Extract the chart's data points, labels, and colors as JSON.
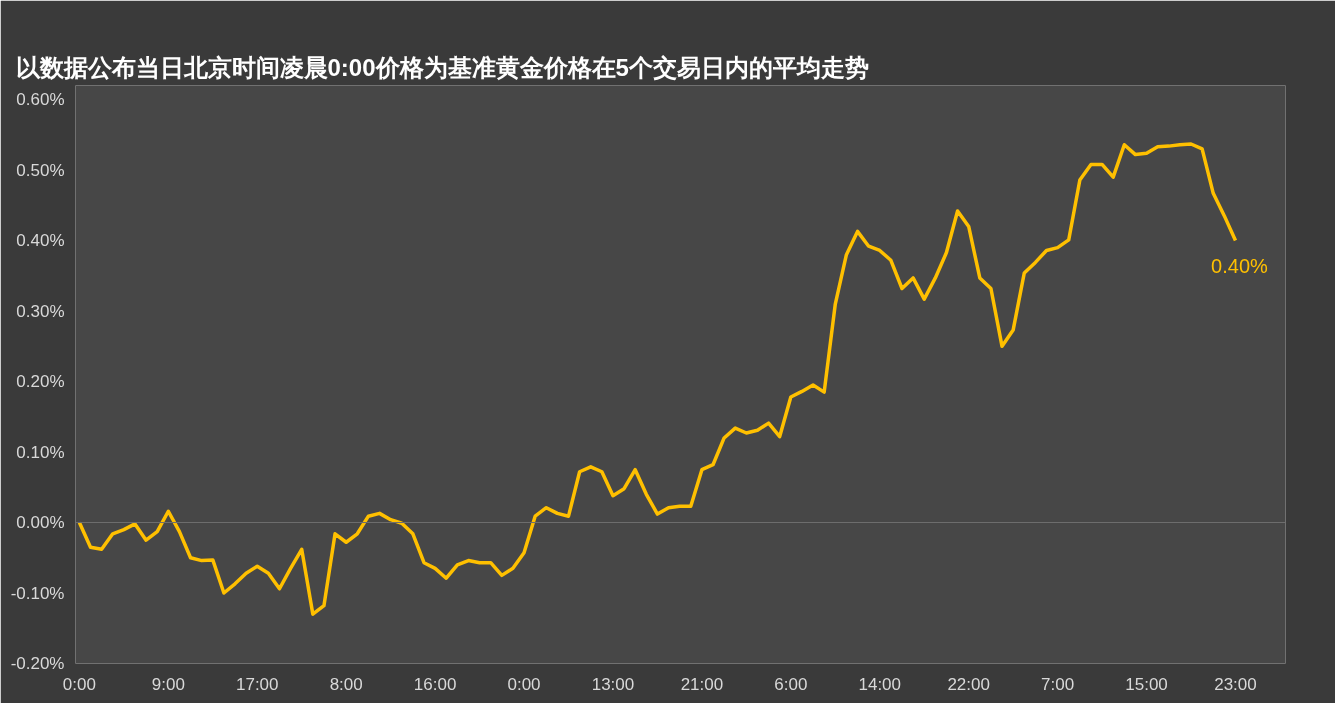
{
  "chart_data": {
    "type": "line",
    "title": "以数据公布当日北京时间凌晨0:00价格为基准黄金价格在5个交易日内的平均走势",
    "categories": [
      "0:00",
      null,
      null,
      null,
      null,
      null,
      null,
      null,
      "9:00",
      null,
      null,
      null,
      null,
      null,
      null,
      null,
      "17:00",
      null,
      null,
      null,
      null,
      null,
      null,
      null,
      "8:00",
      null,
      null,
      null,
      null,
      null,
      null,
      null,
      "16:00",
      null,
      null,
      null,
      null,
      null,
      null,
      null,
      "0:00",
      null,
      null,
      null,
      null,
      null,
      null,
      null,
      "13:00",
      null,
      null,
      null,
      null,
      null,
      null,
      null,
      "21:00",
      null,
      null,
      null,
      null,
      null,
      null,
      null,
      "6:00",
      null,
      null,
      null,
      null,
      null,
      null,
      null,
      "14:00",
      null,
      null,
      null,
      null,
      null,
      null,
      null,
      "22:00",
      null,
      null,
      null,
      null,
      null,
      null,
      null,
      "7:00",
      null,
      null,
      null,
      null,
      null,
      null,
      null,
      "15:00",
      null,
      null,
      null,
      null,
      null,
      null,
      null,
      "23:00"
    ],
    "series": [
      {
        "color": "#ffc000",
        "values": [
          0.0,
          -0.035,
          -0.038,
          -0.016,
          -0.01,
          -0.002,
          -0.025,
          -0.013,
          0.016,
          -0.013,
          -0.05,
          -0.054,
          -0.053,
          -0.1,
          -0.087,
          -0.072,
          -0.062,
          -0.072,
          -0.094,
          -0.065,
          -0.038,
          -0.13,
          -0.118,
          -0.016,
          -0.028,
          -0.016,
          0.009,
          0.013,
          0.004,
          -0.001,
          -0.016,
          -0.057,
          -0.065,
          -0.079,
          -0.06,
          -0.054,
          -0.057,
          -0.057,
          -0.075,
          -0.065,
          -0.043,
          0.009,
          0.021,
          0.013,
          0.009,
          0.072,
          0.079,
          0.072,
          0.038,
          0.048,
          0.075,
          0.04,
          0.012,
          0.021,
          0.023,
          0.023,
          0.075,
          0.082,
          0.12,
          0.134,
          0.127,
          0.131,
          0.141,
          0.122,
          0.178,
          0.186,
          0.195,
          0.185,
          0.31,
          0.38,
          0.413,
          0.392,
          0.386,
          0.372,
          0.332,
          0.347,
          0.317,
          0.347,
          0.383,
          0.442,
          0.42,
          0.347,
          0.332,
          0.25,
          0.273,
          0.354,
          0.369,
          0.386,
          0.39,
          0.401,
          0.486,
          0.508,
          0.508,
          0.49,
          0.536,
          0.522,
          0.524,
          0.533,
          0.534,
          0.536,
          0.537,
          0.53,
          0.467,
          0.435,
          0.4
        ]
      }
    ],
    "ylim": [
      -0.2,
      0.62
    ],
    "yticks": [
      {
        "value": -0.2,
        "label": "-0.20%"
      },
      {
        "value": -0.1,
        "label": "-0.10%"
      },
      {
        "value": 0,
        "label": "0.00%"
      },
      {
        "value": 0.1,
        "label": "0.10%"
      },
      {
        "value": 0.2,
        "label": "0.20%"
      },
      {
        "value": 0.3,
        "label": "0.30%"
      },
      {
        "value": 0.4,
        "label": "0.40%"
      },
      {
        "value": 0.5,
        "label": "0.50%"
      },
      {
        "value": 0.6,
        "label": "0.60%"
      }
    ],
    "ref_lines": [
      {
        "axis": "y",
        "value": 0,
        "color": "#6e6e6e"
      }
    ],
    "annotations": [
      {
        "text": "0.40%",
        "y": 0.4
      }
    ],
    "grid": false,
    "marker": "none",
    "line_style": "solid"
  }
}
